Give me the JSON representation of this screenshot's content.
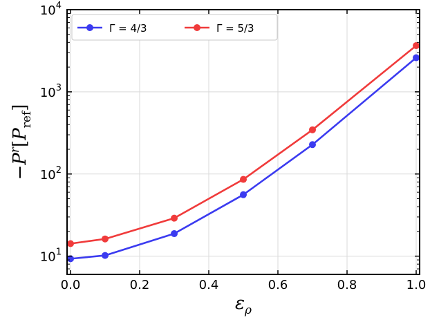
{
  "chart_data": {
    "type": "line",
    "title": "",
    "x": [
      0.0,
      0.1,
      0.3,
      0.5,
      0.7,
      1.0
    ],
    "xlim": [
      -0.01,
      1.01
    ],
    "ylim": [
      6,
      10000
    ],
    "yscale": "log",
    "xticks": [
      {
        "v": 0.0,
        "label": "0.0"
      },
      {
        "v": 0.2,
        "label": "0.2"
      },
      {
        "v": 0.4,
        "label": "0.4"
      },
      {
        "v": 0.6,
        "label": "0.6"
      },
      {
        "v": 0.8,
        "label": "0.8"
      },
      {
        "v": 1.0,
        "label": "1.0"
      }
    ],
    "yticks": [
      {
        "v": 10,
        "base": "10",
        "exp": "1"
      },
      {
        "v": 100,
        "base": "10",
        "exp": "2"
      },
      {
        "v": 1000,
        "base": "10",
        "exp": "3"
      },
      {
        "v": 10000,
        "base": "10",
        "exp": "4"
      }
    ],
    "xlabel": {
      "main": "ε",
      "sub": "ρ"
    },
    "ylabel": {
      "prefix": "−",
      "p": "P",
      "sup": "r",
      "open": "[",
      "p2": "P",
      "sub": "ref",
      "close": "]"
    },
    "grid": true,
    "legend": "top-left",
    "series": [
      {
        "name": "Γ = 4/3",
        "color": "#3b3bf0",
        "values": [
          9.3,
          10.2,
          18.8,
          56,
          228,
          2600
        ]
      },
      {
        "name": "Γ = 5/3",
        "color": "#f03b3b",
        "values": [
          14.2,
          16.2,
          29,
          86,
          345,
          3650
        ]
      }
    ]
  }
}
